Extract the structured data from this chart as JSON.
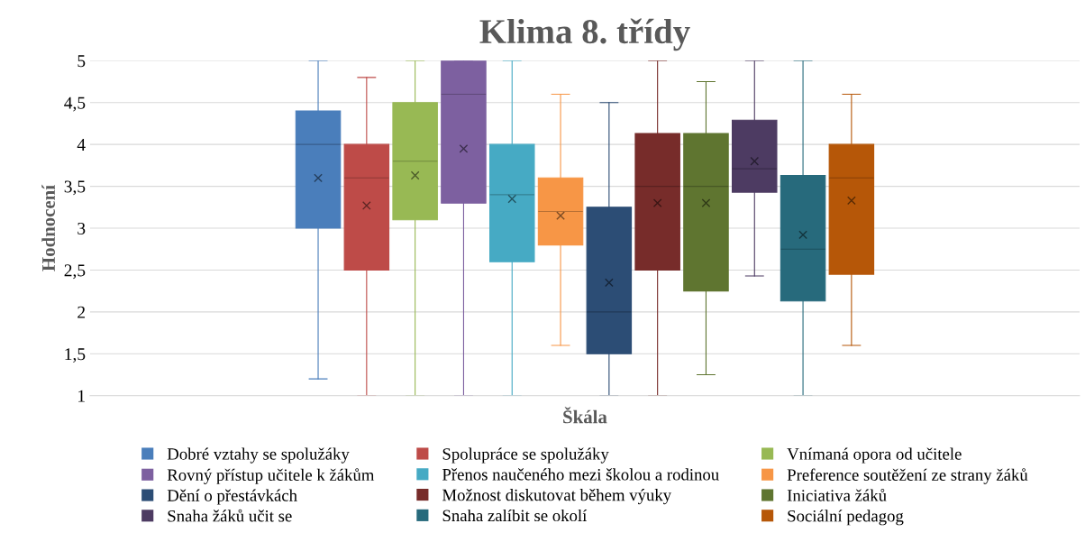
{
  "chart_data": {
    "type": "box",
    "title": "Klima 8. třídy",
    "xlabel": "Škála",
    "ylabel": "Hodnocení",
    "categories": [
      null
    ],
    "ylim": [
      1,
      5
    ],
    "yticks": [
      1,
      {
        "value": 1.5,
        "label": "1,5"
      },
      2,
      {
        "value": 2.5,
        "label": "2,5"
      },
      3,
      {
        "value": 3.5,
        "label": "3,5"
      },
      4,
      {
        "value": 4.5,
        "label": "4,5"
      },
      5
    ],
    "grid": "y",
    "legend": "bottom",
    "marker": "cross",
    "series": [
      {
        "name": "Dobré vztahy se spolužáky",
        "color": "#4a7ebb",
        "boxes": [
          {
            "low": 1.2,
            "q1": 3,
            "median": 4,
            "q3": 4.4,
            "high": 5,
            "mean": 3.6
          }
        ]
      },
      {
        "name": "Spolupráce se spolužáky",
        "color": "#be4b48",
        "boxes": [
          {
            "low": 1,
            "q1": 2.5,
            "median": 3.6,
            "q3": 4,
            "high": 4.8,
            "mean": 3.27
          }
        ]
      },
      {
        "name": "Vnímaná opora od učitele",
        "color": "#98b954",
        "boxes": [
          {
            "low": 1,
            "q1": 3.1,
            "median": 3.8,
            "q3": 4.5,
            "high": 5,
            "mean": 3.63
          }
        ]
      },
      {
        "name": "Rovný přístup učitele k žákům",
        "color": "#7d60a0",
        "boxes": [
          {
            "low": 1,
            "q1": 3.3,
            "median": 4.6,
            "q3": 5,
            "high": 5,
            "mean": 3.95
          }
        ]
      },
      {
        "name": "Přenos naučeného mezi školou a rodinou",
        "color": "#46aac4",
        "boxes": [
          {
            "low": 1,
            "q1": 2.6,
            "median": 3.4,
            "q3": 4,
            "high": 5,
            "mean": 3.35
          }
        ]
      },
      {
        "name": "Preference soutěžení ze strany žáků",
        "color": "#f79646",
        "boxes": [
          {
            "low": 1.6,
            "q1": 2.8,
            "median": 3.2,
            "q3": 3.6,
            "high": 4.6,
            "mean": 3.15
          }
        ]
      },
      {
        "name": "Dění o přestávkách",
        "color": "#2c4d75",
        "boxes": [
          {
            "low": 1,
            "q1": 1.5,
            "median": 2,
            "q3": 3.25,
            "high": 4.5,
            "mean": 2.35
          }
        ]
      },
      {
        "name": "Možnost diskutovat během výuky",
        "color": "#772c2a",
        "boxes": [
          {
            "low": 1,
            "q1": 2.5,
            "median": 3.5,
            "q3": 4.13,
            "high": 5,
            "mean": 3.3
          }
        ]
      },
      {
        "name": "Iniciativa žáků",
        "color": "#5f7530",
        "boxes": [
          {
            "low": 1.25,
            "q1": 2.25,
            "median": 3.5,
            "q3": 4.13,
            "high": 4.75,
            "mean": 3.3
          }
        ]
      },
      {
        "name": "Snaha žáků učit se",
        "color": "#4d3b62",
        "boxes": [
          {
            "low": 2.43,
            "q1": 3.43,
            "median": 3.71,
            "q3": 4.29,
            "high": 5,
            "mean": 3.8
          }
        ]
      },
      {
        "name": "Snaha zalíbit se okolí",
        "color": "#276a7c",
        "boxes": [
          {
            "low": 1,
            "q1": 2.13,
            "median": 2.75,
            "q3": 3.63,
            "high": 5,
            "mean": 2.92
          }
        ]
      },
      {
        "name": "Sociální pedagog",
        "color": "#b65708",
        "boxes": [
          {
            "low": 1.6,
            "q1": 2.45,
            "median": 3.6,
            "q3": 4,
            "high": 4.6,
            "mean": 3.33
          }
        ]
      }
    ]
  }
}
